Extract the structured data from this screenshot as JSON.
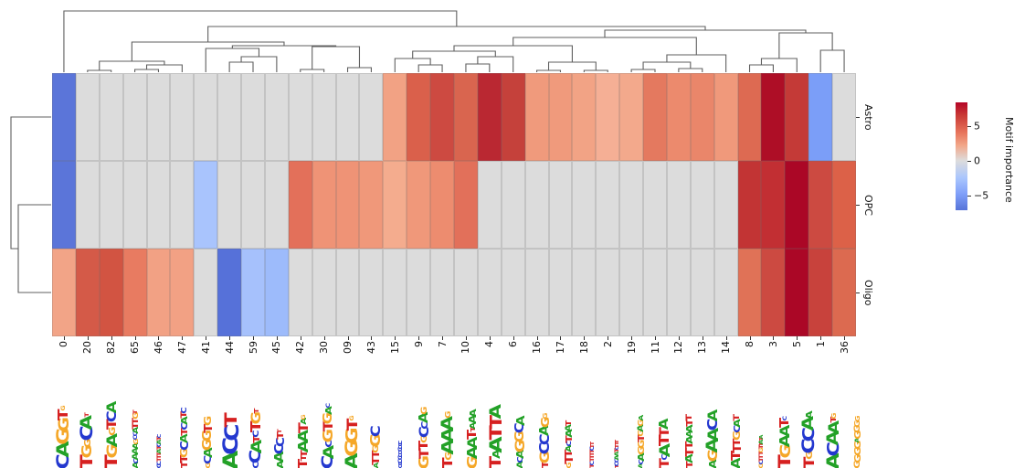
{
  "colors": {
    "dendrogram_line": "#5f5f5f",
    "grid_gap": "rgba(110,110,110,0.22)",
    "logo_letters": {
      "A": "#23a127",
      "C": "#2438cf",
      "G": "#f5a728",
      "T": "#d62020"
    }
  },
  "heatmap": {
    "row_labels": [
      "Astro",
      "OPC",
      "Oligo"
    ],
    "col_labels": [
      "0",
      "20",
      "82",
      "65",
      "46",
      "47",
      "41",
      "44",
      "59",
      "45",
      "42",
      "30",
      "09",
      "43",
      "15",
      "9",
      "7",
      "10",
      "4",
      "6",
      "16",
      "17",
      "18",
      "2",
      "19",
      "11",
      "12",
      "13",
      "14",
      "8",
      "3",
      "5",
      "1",
      "36"
    ],
    "cell_colors": [
      [
        "#5b75d9",
        "#dcdcdc",
        "#dcdcdc",
        "#dcdcdc",
        "#dcdcdc",
        "#dcdcdc",
        "#dcdcdc",
        "#dcdcdc",
        "#dcdcdc",
        "#dcdcdc",
        "#dcdcdc",
        "#dcdcdc",
        "#dcdcdc",
        "#dcdcdc",
        "#f2a284",
        "#da604b",
        "#cd4a41",
        "#d9654f",
        "#ba2832",
        "#c5413b",
        "#f09a7c",
        "#f09a7c",
        "#f2a385",
        "#f5af95",
        "#f3a98c",
        "#e4795f",
        "#ec8a6d",
        "#ea866a",
        "#f0997b",
        "#dd6a52",
        "#ae0e26",
        "#c43a37",
        "#7b9ef8",
        "#dcdcdc"
      ],
      [
        "#5b75d9",
        "#dcdcdc",
        "#dcdcdc",
        "#dcdcdc",
        "#dcdcdc",
        "#dcdcdc",
        "#a9c4fd",
        "#dcdcdc",
        "#dcdcdc",
        "#dcdcdc",
        "#e3705a",
        "#ef9376",
        "#ef9376",
        "#f0987a",
        "#f4ac8e",
        "#f0987a",
        "#ed8c6f",
        "#e2705a",
        "#dcdcdc",
        "#dcdcdc",
        "#dcdcdc",
        "#dcdcdc",
        "#dcdcdc",
        "#dcdcdc",
        "#dcdcdc",
        "#dcdcdc",
        "#dcdcdc",
        "#dcdcdc",
        "#dcdcdc",
        "#c23434",
        "#c22f33",
        "#ab0726",
        "#cc4a41",
        "#dc6148"
      ],
      [
        "#f2a487",
        "#d45a48",
        "#d25442",
        "#e87b61",
        "#f2a184",
        "#f2a184",
        "#dcdcdc",
        "#5671d9",
        "#a6c1fc",
        "#9dbbfb",
        "#dcdcdc",
        "#dcdcdc",
        "#dcdcdc",
        "#dcdcdc",
        "#dcdcdc",
        "#dcdcdc",
        "#dcdcdc",
        "#dcdcdc",
        "#dcdcdc",
        "#dcdcdc",
        "#dcdcdc",
        "#dcdcdc",
        "#dcdcdc",
        "#dcdcdc",
        "#dcdcdc",
        "#dcdcdc",
        "#dcdcdc",
        "#dcdcdc",
        "#dcdcdc",
        "#e07257",
        "#cc4a41",
        "#ab0726",
        "#c8423c",
        "#dc6a50"
      ]
    ]
  },
  "chart_data": {
    "type": "heatmap",
    "title": "",
    "categories": [
      "0",
      "20",
      "82",
      "65",
      "46",
      "47",
      "41",
      "44",
      "59",
      "45",
      "42",
      "30",
      "09",
      "43",
      "15",
      "9",
      "7",
      "10",
      "4",
      "6",
      "16",
      "17",
      "18",
      "2",
      "19",
      "11",
      "12",
      "13",
      "14",
      "8",
      "3",
      "5",
      "1",
      "36"
    ],
    "series": [
      {
        "name": "Astro",
        "values": [
          -6.5,
          0,
          0,
          0,
          0,
          0,
          0,
          0,
          0,
          0,
          0,
          0,
          0,
          0,
          2,
          4.5,
          5,
          4.5,
          6.5,
          5.5,
          2.5,
          2.5,
          2,
          1.5,
          2,
          4,
          3.5,
          3.5,
          2.5,
          4,
          7.5,
          5.5,
          -4.5,
          0
        ]
      },
      {
        "name": "OPC",
        "values": [
          -6.5,
          0,
          0,
          0,
          0,
          0,
          -3,
          0,
          0,
          0,
          4,
          2.5,
          2.5,
          2.5,
          2,
          2.5,
          3,
          4,
          0,
          0,
          0,
          0,
          0,
          0,
          0,
          0,
          0,
          0,
          0,
          6,
          6,
          7.8,
          5,
          4.5
        ]
      },
      {
        "name": "Oligo",
        "values": [
          2.5,
          5,
          5.5,
          3.5,
          2.5,
          2.5,
          0,
          -6.5,
          -3,
          -3.5,
          0,
          0,
          0,
          0,
          0,
          0,
          0,
          0,
          0,
          0,
          0,
          0,
          0,
          0,
          0,
          0,
          0,
          0,
          0,
          4,
          5,
          7.8,
          5.5,
          4
        ]
      }
    ],
    "colormap": "coolwarm",
    "value_range": [
      -8,
      8
    ],
    "colorbar_label": "Motif importance",
    "colorbar_ticks": [
      5,
      0,
      -5
    ],
    "row_dendrogram": true,
    "col_dendrogram": true
  },
  "colorbar": {
    "label": "Motif importance",
    "ticks": [
      "5",
      "0",
      "−5"
    ]
  },
  "logos": [
    {
      "seq": "CAGGTG",
      "sizes": [
        1,
        1,
        1,
        0.85,
        0.8,
        0.3
      ]
    },
    {
      "seq": "TGGCAT",
      "sizes": [
        1,
        0.8,
        0.5,
        1,
        0.9,
        0.3
      ]
    },
    {
      "seq": "TGAGTCA",
      "sizes": [
        1,
        0.85,
        0.85,
        0.5,
        0.75,
        0.75,
        0.75
      ]
    },
    {
      "seq": "ACAAAGCCATTGT",
      "sizes": [
        0.4,
        0.35,
        0.45,
        0.45,
        0.4,
        0.35,
        0.3,
        0.3,
        0.4,
        0.45,
        0.45,
        0.4,
        0.3
      ]
    },
    {
      "seq": "CCTTTATCATC",
      "sizes": [
        0.3,
        0.3,
        0.32,
        0.34,
        0.32,
        0.3,
        0.3,
        0.32,
        0.3,
        0.3,
        0.28
      ]
    },
    {
      "seq": "TTGCATCATC",
      "sizes": [
        0.55,
        0.6,
        0.6,
        0.65,
        0.6,
        0.55,
        0.5,
        0.5,
        0.45,
        0.4
      ]
    },
    {
      "seq": "GCAGGTG",
      "sizes": [
        0.35,
        0.6,
        0.65,
        0.7,
        0.7,
        0.65,
        0.6
      ]
    },
    {
      "seq": "ACCT",
      "sizes": [
        1.15,
        1.15,
        1.1,
        1
      ]
    },
    {
      "seq": "CCATCTGT",
      "sizes": [
        0.45,
        0.9,
        0.85,
        0.5,
        0.45,
        0.8,
        0.75,
        0.35
      ]
    },
    {
      "seq": "AACCTT",
      "sizes": [
        0.5,
        0.7,
        0.7,
        0.65,
        0.55,
        0.3
      ]
    },
    {
      "seq": "TTTAATAG",
      "sizes": [
        0.7,
        0.4,
        0.5,
        0.8,
        0.8,
        0.75,
        0.4,
        0.3
      ]
    },
    {
      "seq": "CACGTGAC",
      "sizes": [
        0.9,
        0.85,
        0.5,
        0.8,
        0.75,
        0.7,
        0.5,
        0.3
      ]
    },
    {
      "seq": "AGGTG",
      "sizes": [
        1,
        1,
        0.95,
        0.85,
        0.3
      ]
    },
    {
      "seq": "ATTGGC",
      "sizes": [
        0.35,
        0.6,
        0.6,
        0.45,
        0.8,
        0.75
      ]
    },
    {
      "seq": "CCCCCCCCCC",
      "sizes": [
        0.28,
        0.28,
        0.3,
        0.3,
        0.28,
        0.28,
        0.3,
        0.28,
        0.28,
        0.26
      ]
    },
    {
      "seq": "GTTGCCAG",
      "sizes": [
        0.8,
        0.75,
        0.7,
        0.45,
        0.75,
        0.5,
        0.7,
        0.45
      ]
    },
    {
      "seq": "TGAAAG",
      "sizes": [
        0.8,
        0.5,
        0.95,
        0.95,
        0.9,
        0.4
      ]
    },
    {
      "seq": "GAATTAAA",
      "sizes": [
        0.8,
        0.8,
        0.75,
        0.7,
        0.35,
        0.4,
        0.6,
        0.55
      ]
    },
    {
      "seq": "TAATTA",
      "sizes": [
        0.9,
        0.6,
        1,
        1,
        0.95,
        0.9
      ]
    },
    {
      "seq": "ACAGGCA",
      "sizes": [
        0.45,
        0.4,
        0.6,
        0.75,
        0.7,
        0.7,
        0.65
      ]
    },
    {
      "seq": "TGCCAGG",
      "sizes": [
        0.5,
        0.75,
        0.8,
        0.75,
        0.7,
        0.65,
        0.35
      ]
    },
    {
      "seq": "GTTACTAAT",
      "sizes": [
        0.35,
        0.65,
        0.6,
        0.4,
        0.35,
        0.5,
        0.5,
        0.45,
        0.4
      ]
    },
    {
      "seq": "TCTTTTCTT",
      "sizes": [
        0.3,
        0.3,
        0.32,
        0.34,
        0.32,
        0.3,
        0.3,
        0.28,
        0.28
      ]
    },
    {
      "seq": "TCCAATCTTT",
      "sizes": [
        0.28,
        0.3,
        0.3,
        0.32,
        0.3,
        0.3,
        0.28,
        0.28,
        0.28,
        0.26
      ]
    },
    {
      "seq": "ACAGGTGAGA",
      "sizes": [
        0.3,
        0.35,
        0.5,
        0.55,
        0.55,
        0.5,
        0.4,
        0.45,
        0.4,
        0.35
      ]
    },
    {
      "seq": "TCATTA",
      "sizes": [
        0.75,
        0.4,
        0.85,
        0.8,
        0.75,
        0.7
      ]
    },
    {
      "seq": "TATTAAATT",
      "sizes": [
        0.5,
        0.6,
        0.65,
        0.6,
        0.55,
        0.4,
        0.5,
        0.5,
        0.45
      ]
    },
    {
      "seq": "AGAACA",
      "sizes": [
        0.6,
        0.75,
        0.9,
        0.85,
        0.8,
        0.75
      ]
    },
    {
      "seq": "ATTTGCAT",
      "sizes": [
        0.7,
        0.7,
        0.65,
        0.6,
        0.6,
        0.55,
        0.5,
        0.45
      ]
    },
    {
      "seq": "GCTTTGTTATA",
      "sizes": [
        0.3,
        0.32,
        0.34,
        0.34,
        0.32,
        0.3,
        0.3,
        0.28,
        0.3,
        0.28,
        0.26
      ]
    },
    {
      "seq": "TGAATC",
      "sizes": [
        1,
        0.85,
        0.8,
        0.75,
        0.7,
        0.3
      ]
    },
    {
      "seq": "TGCCAA",
      "sizes": [
        0.85,
        0.5,
        1,
        0.95,
        0.9,
        0.5
      ]
    },
    {
      "seq": "ACAATG",
      "sizes": [
        1,
        0.95,
        0.9,
        0.85,
        0.4,
        0.35
      ]
    },
    {
      "seq": "GGGGAGGGG",
      "sizes": [
        0.45,
        0.5,
        0.55,
        0.5,
        0.3,
        0.5,
        0.45,
        0.4,
        0.35
      ]
    }
  ],
  "dendrograms": {
    "top": {
      "h": 12,
      "c": [
        0,
        {
          "h": 29,
          "c": [
            {
              "h": 46,
              "c": [
                {
                  "h": 67,
                  "c": [
                    {
                      "h": 77,
                      "c": [
                        1,
                        2
                      ]
                    },
                    {
                      "h": 71,
                      "c": [
                        {
                          "h": 76,
                          "c": [
                            3,
                            4
                          ]
                        },
                        5
                      ]
                    }
                  ]
                },
                {
                  "h": 50,
                  "c": [
                    {
                      "h": 53,
                      "c": [
                        6,
                        {
                          "h": 62,
                          "c": [
                            {
                              "h": 68,
                              "c": [
                                7,
                                8
                              ]
                            },
                            9
                          ]
                        }
                      ]
                    },
                    {
                      "h": 51,
                      "c": [
                        {
                          "h": 76,
                          "c": [
                            10,
                            11
                          ]
                        },
                        {
                          "h": 74,
                          "c": [
                            12,
                            13
                          ]
                        }
                      ]
                    }
                  ]
                }
              ]
            },
            {
              "h": 33,
              "c": [
                {
                  "h": 41,
                  "c": [
                    {
                      "h": 50,
                      "c": [
                        {
                          "h": 56,
                          "c": [
                            {
                              "h": 64,
                              "c": [
                                14,
                                {
                                  "h": 71,
                                  "c": [
                                    15,
                                    16
                                  ]
                                }
                              ]
                            },
                            {
                              "h": 62,
                              "c": [
                                {
                                  "h": 70,
                                  "c": [
                                    17,
                                    18
                                  ]
                                },
                                19
                              ]
                            }
                          ]
                        },
                        {
                          "h": 68,
                          "c": [
                            {
                              "h": 77,
                              "c": [
                                20,
                                21
                              ]
                            },
                            {
                              "h": 77,
                              "c": [
                                22,
                                23
                              ]
                            }
                          ]
                        }
                      ]
                    },
                    {
                      "h": 60,
                      "c": [
                        {
                          "h": 68,
                          "c": [
                            {
                              "h": 76,
                              "c": [
                                24,
                                25
                              ]
                            },
                            {
                              "h": 75,
                              "c": [
                                26,
                                27
                              ]
                            }
                          ]
                        },
                        28
                      ]
                    }
                  ]
                },
                {
                  "h": 36,
                  "c": [
                    {
                      "h": 64,
                      "c": [
                        {
                          "h": 71,
                          "c": [
                            29,
                            30
                          ]
                        },
                        31
                      ]
                    },
                    {
                      "h": 55,
                      "c": [
                        32,
                        33
                      ]
                    }
                  ]
                }
              ]
            }
          ]
        }
      ]
    },
    "left": {
      "h": 12,
      "c": [
        0,
        {
          "h": 20,
          "c": [
            1,
            2
          ]
        }
      ]
    }
  }
}
